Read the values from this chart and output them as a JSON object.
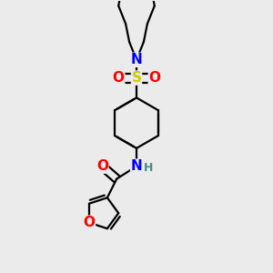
{
  "bg_color": "#ebebeb",
  "atom_colors": {
    "N": "#0000ff",
    "O": "#ff0000",
    "S": "#cccc00",
    "H": "#4a8a8a",
    "C": "#000000"
  },
  "bond_color": "#000000",
  "bond_width": 1.6,
  "font_size_atoms": 11,
  "font_size_H": 9,
  "figsize": [
    3.0,
    3.0
  ],
  "dpi": 100
}
